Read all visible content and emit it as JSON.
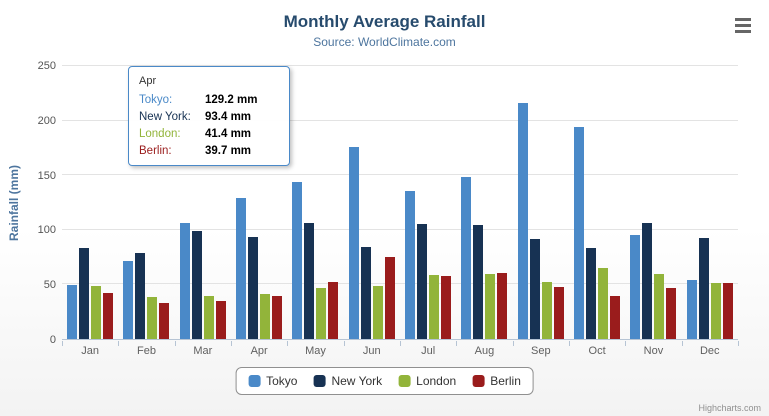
{
  "header": {
    "title": "Monthly Average Rainfall",
    "subtitle": "Source: WorldClimate.com"
  },
  "chart_data": {
    "type": "bar",
    "title": "Monthly Average Rainfall",
    "subtitle": "Source: WorldClimate.com",
    "xlabel": "",
    "ylabel": "Rainfall (mm)",
    "ylim": [
      0,
      250
    ],
    "yticks": [
      0,
      50,
      100,
      150,
      200,
      250
    ],
    "grid": true,
    "legend_position": "bottom",
    "categories": [
      "Jan",
      "Feb",
      "Mar",
      "Apr",
      "May",
      "Jun",
      "Jul",
      "Aug",
      "Sep",
      "Oct",
      "Nov",
      "Dec"
    ],
    "series": [
      {
        "name": "Tokyo",
        "color": "#4a89c8",
        "values": [
          49.9,
          71.5,
          106.4,
          129.2,
          144.0,
          176.0,
          135.6,
          148.5,
          216.4,
          194.1,
          95.6,
          54.4
        ]
      },
      {
        "name": "New York",
        "color": "#173253",
        "values": [
          83.6,
          78.8,
          98.5,
          93.4,
          106.0,
          84.5,
          105.0,
          104.3,
          91.2,
          83.5,
          106.6,
          92.3
        ]
      },
      {
        "name": "London",
        "color": "#92b43a",
        "values": [
          48.9,
          38.8,
          39.3,
          41.4,
          47.0,
          48.3,
          59.0,
          59.6,
          52.4,
          65.2,
          59.3,
          51.2
        ]
      },
      {
        "name": "Berlin",
        "color": "#9a1c1c",
        "values": [
          42.4,
          33.2,
          34.5,
          39.7,
          52.6,
          75.5,
          57.4,
          60.4,
          47.6,
          39.1,
          46.8,
          51.1
        ]
      }
    ]
  },
  "tooltip": {
    "category": "Apr",
    "rows": [
      {
        "label": "Tokyo:",
        "value": "129.2 mm",
        "color": "#4a89c8"
      },
      {
        "label": "New York:",
        "value": "93.4 mm",
        "color": "#173253"
      },
      {
        "label": "London:",
        "value": "41.4 mm",
        "color": "#92b43a"
      },
      {
        "label": "Berlin:",
        "value": "39.7 mm",
        "color": "#9a1c1c"
      }
    ]
  },
  "credits": {
    "text": "Highcharts.com"
  }
}
